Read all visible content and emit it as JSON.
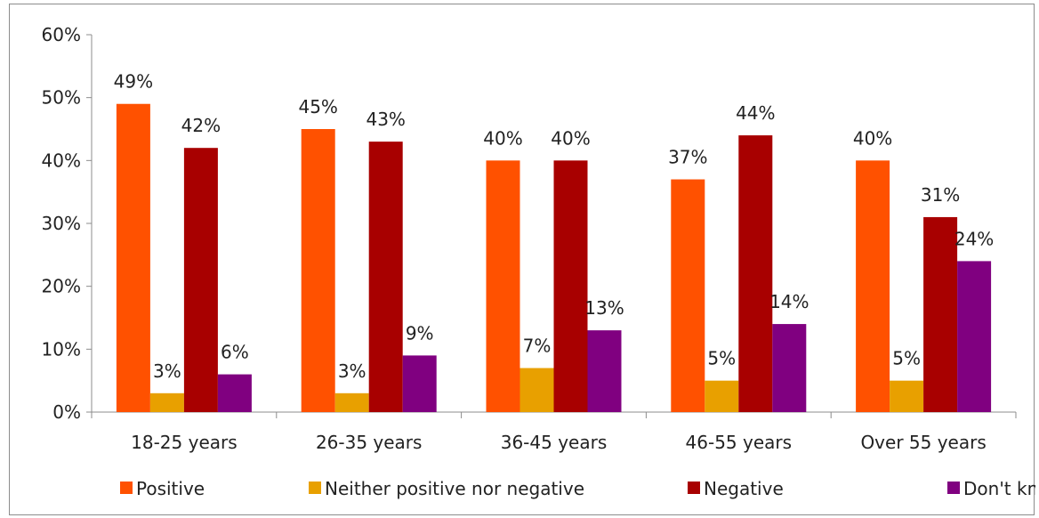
{
  "chart_data": {
    "type": "bar",
    "categories": [
      "18-25 years",
      "26-35 years",
      "36-45 years",
      "46-55 years",
      "Over 55 years"
    ],
    "series": [
      {
        "name": "Positive",
        "color": "#ff5100",
        "values": [
          49,
          45,
          40,
          37,
          40
        ],
        "labels": [
          "49%",
          "45%",
          "40%",
          "37%",
          "40%"
        ]
      },
      {
        "name": "Neither positive nor negative",
        "color": "#e8a000",
        "values": [
          3,
          3,
          7,
          5,
          5
        ],
        "labels": [
          "3%",
          "3%",
          "7%",
          "5%",
          "5%"
        ]
      },
      {
        "name": "Negative",
        "color": "#a80000",
        "values": [
          42,
          43,
          40,
          44,
          31
        ],
        "labels": [
          "42%",
          "43%",
          "40%",
          "44%",
          "31%"
        ]
      },
      {
        "name": "Don't know",
        "color": "#800080",
        "values": [
          6,
          9,
          13,
          14,
          24
        ],
        "labels": [
          "6%",
          "9%",
          "13%",
          "14%",
          "24%"
        ]
      }
    ],
    "yticks": [
      "0%",
      "10%",
      "20%",
      "30%",
      "40%",
      "50%",
      "60%"
    ],
    "ylim": [
      0,
      60
    ],
    "legend_position": "bottom",
    "grid": false
  }
}
